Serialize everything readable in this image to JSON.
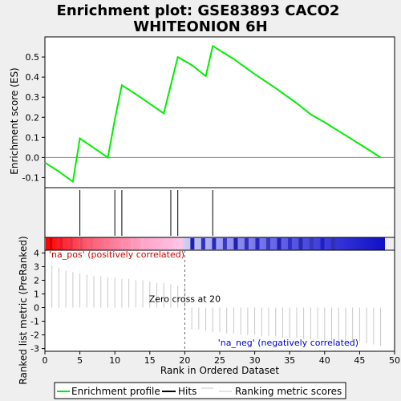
{
  "chart_data": {
    "type": "line",
    "title_lines": [
      "Enrichment plot: GSE83893 CACO2",
      "WHITEONION 6H"
    ],
    "xlabel": "Rank in Ordered Dataset",
    "ylabel_top": "Enrichment score (ES)",
    "ylabel_bottom": "Ranked list metric (PreRanked)",
    "xlim": [
      0,
      50
    ],
    "x_ticks": [
      "0",
      "5",
      "10",
      "15",
      "20",
      "25",
      "30",
      "35",
      "40",
      "45",
      "50"
    ],
    "es_ylim": [
      -0.15,
      0.6
    ],
    "es_ticks": [
      "-0.1",
      "0.0",
      "0.1",
      "0.2",
      "0.3",
      "0.4",
      "0.5"
    ],
    "metric_ylim": [
      -3.2,
      4.2
    ],
    "metric_ticks": [
      "-3",
      "-2",
      "-1",
      "0",
      "1",
      "2",
      "3",
      "4"
    ],
    "enrichment_profile": {
      "name": "Enrichment profile",
      "color": "#00ee00",
      "x": [
        0,
        2,
        4,
        5,
        9,
        10,
        11,
        13,
        17,
        19,
        21,
        23,
        24,
        27,
        30,
        33,
        36,
        38,
        40,
        43,
        46,
        48
      ],
      "y": [
        -0.025,
        -0.07,
        -0.12,
        0.095,
        0.0,
        0.19,
        0.36,
        0.315,
        0.22,
        0.5,
        0.46,
        0.405,
        0.555,
        0.49,
        0.415,
        0.345,
        0.27,
        0.215,
        0.175,
        0.11,
        0.045,
        0.0
      ]
    },
    "hits": {
      "name": "Hits",
      "color": "#000000",
      "x": [
        5,
        10,
        11,
        18,
        19,
        24
      ]
    },
    "ranking_metric": {
      "name": "Ranking metric scores",
      "color": "#c8c8c8",
      "x": [
        1,
        2,
        3,
        4,
        5,
        6,
        7,
        8,
        9,
        10,
        11,
        12,
        13,
        14,
        15,
        16,
        17,
        18,
        19,
        20,
        21,
        22,
        23,
        24,
        25,
        26,
        27,
        28,
        29,
        30,
        31,
        32,
        33,
        34,
        35,
        36,
        37,
        38,
        39,
        40,
        41,
        42,
        43,
        44,
        45,
        46,
        47,
        48
      ],
      "y": [
        3.1,
        2.9,
        2.7,
        2.6,
        2.5,
        2.4,
        2.3,
        2.3,
        2.2,
        2.2,
        2.1,
        2.1,
        2.0,
        2.0,
        1.9,
        1.8,
        1.8,
        1.7,
        1.6,
        1.5,
        -1.6,
        -1.6,
        -1.7,
        -1.8,
        -1.8,
        -1.9,
        -1.9,
        -2.0,
        -2.0,
        -2.0,
        -2.1,
        -2.1,
        -2.1,
        -2.2,
        -2.2,
        -2.2,
        -2.3,
        -2.3,
        -2.3,
        -2.4,
        -2.4,
        -2.4,
        -2.5,
        -2.5,
        -2.5,
        -2.6,
        -2.7,
        -2.8
      ]
    },
    "zero_cross": {
      "rank": 20,
      "label": "Zero cross at 20"
    },
    "pos_label": "'na_pos' (positively correlated)",
    "neg_label": "'na_neg' (negatively correlated)",
    "pos_color": "#cc0000",
    "neg_color": "#0000cc",
    "legend_placement": "bottom",
    "legend": [
      "Enrichment profile",
      "Hits",
      "Ranking metric scores"
    ]
  }
}
